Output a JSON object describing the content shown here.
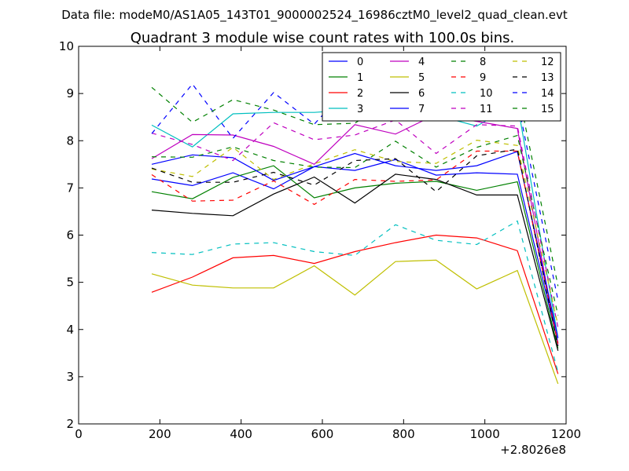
{
  "figure": {
    "suptitle": "Data file: modeM0/AS1A05_143T01_9000002524_16986cztM0_level2_quad_clean.evt"
  },
  "chart_data": {
    "type": "line",
    "title": "Quadrant 3 module wise count rates with 100.0s bins.",
    "xlabel": "",
    "ylabel": "",
    "x_offset_label": "+2.8026e8",
    "xlim": [
      0,
      1200
    ],
    "ylim": [
      2,
      10
    ],
    "x_ticks": [
      0,
      200,
      400,
      600,
      800,
      1000,
      1200
    ],
    "y_ticks": [
      2,
      3,
      4,
      5,
      6,
      7,
      8,
      9,
      10
    ],
    "grid": false,
    "legend_position": "top-right",
    "legend_columns": 4,
    "x": [
      180,
      280,
      380,
      480,
      580,
      680,
      780,
      880,
      980,
      1080,
      1180
    ],
    "series": [
      {
        "name": "0",
        "color": "#0000ff",
        "style": "solid",
        "values": [
          7.19,
          7.05,
          7.32,
          6.98,
          7.45,
          7.37,
          7.6,
          7.27,
          7.32,
          7.29,
          3.72
        ]
      },
      {
        "name": "1",
        "color": "#008000",
        "style": "solid",
        "values": [
          6.92,
          6.77,
          7.22,
          7.47,
          6.79,
          7.0,
          7.1,
          7.14,
          6.95,
          7.13,
          3.6
        ]
      },
      {
        "name": "2",
        "color": "#ff0000",
        "style": "solid",
        "values": [
          4.79,
          5.11,
          5.52,
          5.57,
          5.4,
          5.65,
          5.84,
          6.0,
          5.94,
          5.67,
          3.06
        ]
      },
      {
        "name": "3",
        "color": "#00bfbf",
        "style": "solid",
        "values": [
          8.33,
          7.87,
          8.57,
          8.6,
          8.6,
          8.66,
          8.81,
          8.54,
          8.31,
          8.8,
          3.82
        ]
      },
      {
        "name": "4",
        "color": "#bf00bf",
        "style": "solid",
        "values": [
          7.62,
          8.13,
          8.12,
          7.88,
          7.5,
          8.34,
          8.14,
          8.56,
          8.41,
          8.26,
          3.66
        ]
      },
      {
        "name": "5",
        "color": "#bfbf00",
        "style": "solid",
        "values": [
          5.18,
          4.94,
          4.88,
          4.88,
          5.35,
          4.73,
          5.44,
          5.47,
          4.86,
          5.25,
          2.85
        ]
      },
      {
        "name": "6",
        "color": "#000000",
        "style": "solid",
        "values": [
          6.53,
          6.46,
          6.41,
          6.87,
          7.23,
          6.68,
          7.29,
          7.18,
          6.85,
          6.85,
          3.55
        ]
      },
      {
        "name": "7",
        "color": "#0000ff",
        "style": "solid",
        "values": [
          7.5,
          7.7,
          7.64,
          7.16,
          7.45,
          7.73,
          7.47,
          7.37,
          7.47,
          7.77,
          3.82
        ]
      },
      {
        "name": "8",
        "color": "#008000",
        "style": "dashed",
        "values": [
          7.66,
          7.65,
          7.87,
          7.58,
          7.44,
          7.43,
          7.99,
          7.44,
          7.86,
          8.11,
          4.3
        ]
      },
      {
        "name": "9",
        "color": "#ff0000",
        "style": "dashed",
        "values": [
          7.28,
          6.72,
          6.74,
          7.15,
          6.65,
          7.18,
          7.14,
          7.17,
          7.78,
          7.78,
          3.7
        ]
      },
      {
        "name": "10",
        "color": "#00bfbf",
        "style": "dashed",
        "values": [
          5.63,
          5.59,
          5.81,
          5.84,
          5.65,
          5.57,
          6.22,
          5.89,
          5.8,
          6.3,
          3.1
        ]
      },
      {
        "name": "11",
        "color": "#bf00bf",
        "style": "dashed",
        "values": [
          8.16,
          7.92,
          7.58,
          8.38,
          8.02,
          8.12,
          8.44,
          7.73,
          8.34,
          8.31,
          4.04
        ]
      },
      {
        "name": "12",
        "color": "#bfbf00",
        "style": "dashed",
        "values": [
          7.4,
          7.24,
          7.86,
          7.18,
          7.51,
          7.81,
          7.56,
          7.52,
          8.01,
          7.9,
          4.09
        ]
      },
      {
        "name": "13",
        "color": "#000000",
        "style": "dashed",
        "values": [
          7.42,
          7.12,
          7.12,
          7.33,
          7.06,
          7.58,
          7.62,
          6.92,
          7.68,
          7.82,
          3.65
        ]
      },
      {
        "name": "14",
        "color": "#0000ff",
        "style": "dashed",
        "values": [
          8.15,
          9.2,
          8.05,
          9.02,
          8.35,
          9.29,
          9.15,
          8.81,
          8.66,
          8.86,
          4.62
        ]
      },
      {
        "name": "15",
        "color": "#008000",
        "style": "dashed",
        "values": [
          9.13,
          8.39,
          8.87,
          8.65,
          8.34,
          8.37,
          8.95,
          8.78,
          8.74,
          9.14,
          4.92
        ]
      }
    ]
  }
}
